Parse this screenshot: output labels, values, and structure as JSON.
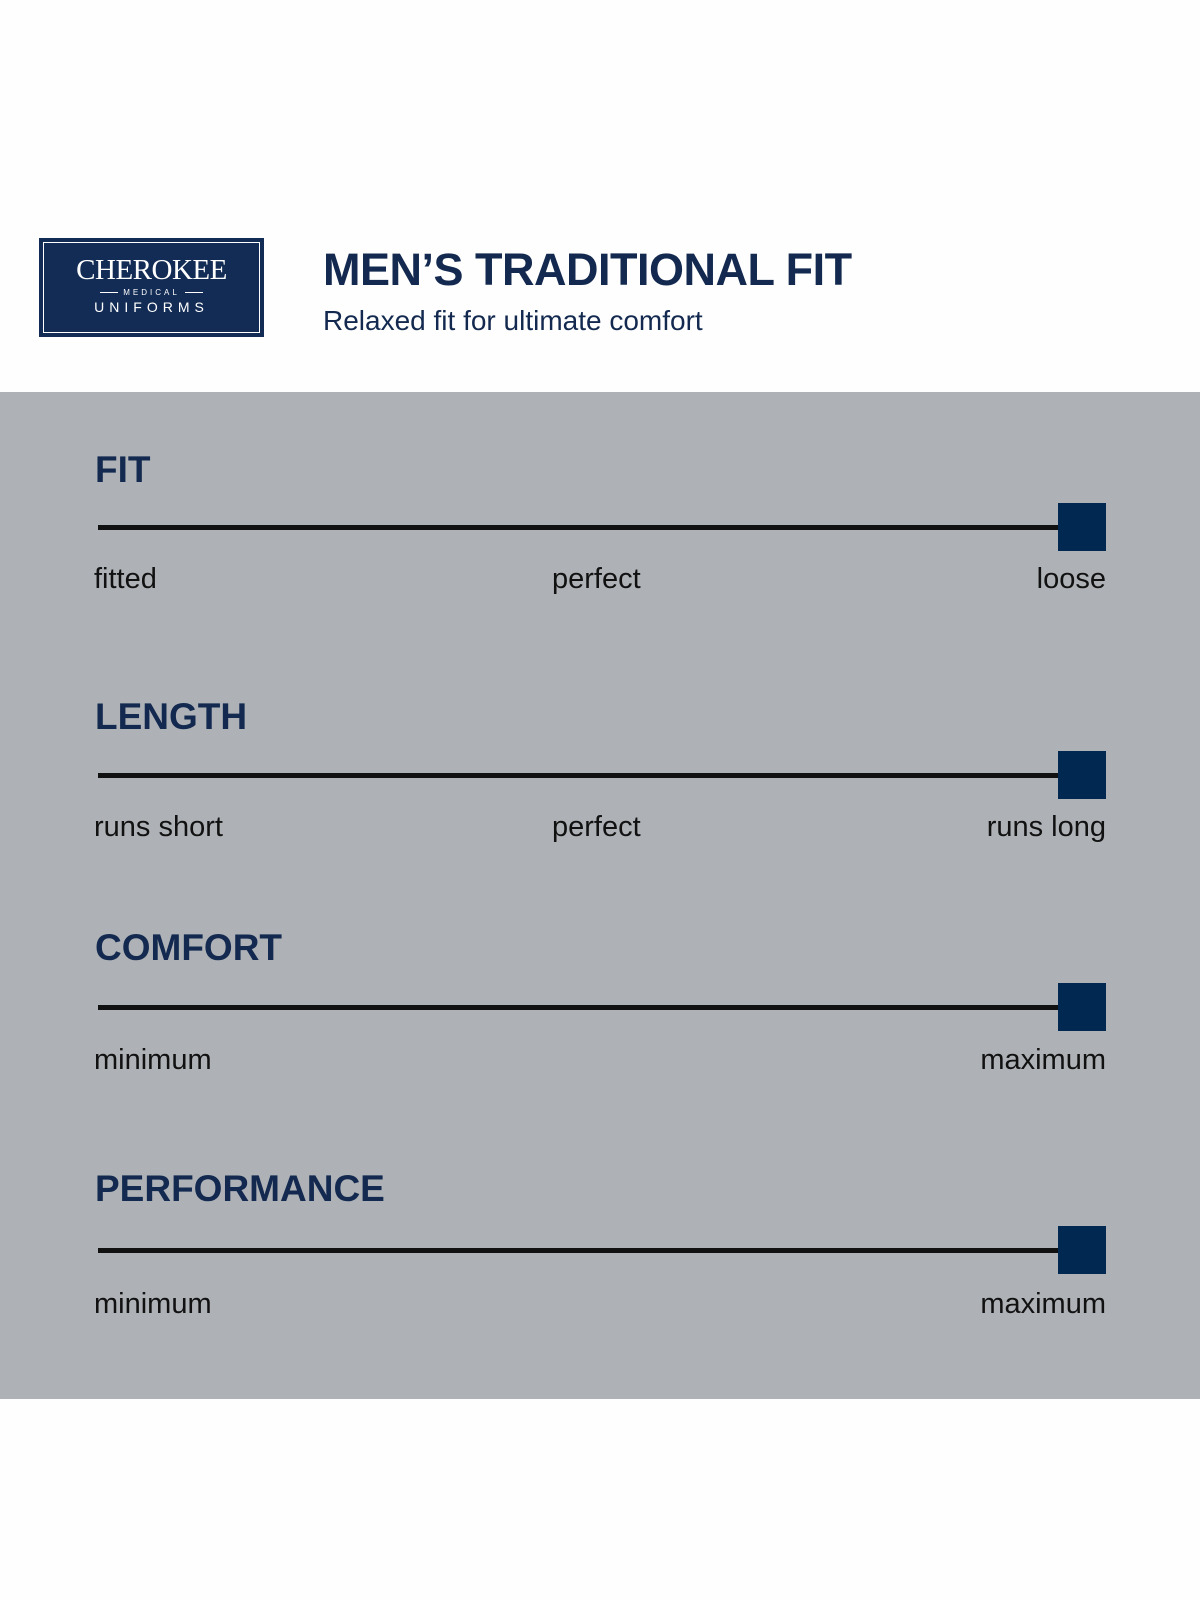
{
  "logo": {
    "brand": "CHEROKEE",
    "sub": "MEDICAL",
    "main": "UNIFORMS"
  },
  "header": {
    "title": "MEN’S TRADITIONAL FIT",
    "subtitle": "Relaxed fit for ultimate comfort"
  },
  "colors": {
    "navy": "#13294f",
    "marker": "#002851",
    "band": "#aeb2b6"
  },
  "scales": [
    {
      "title": "FIT",
      "left": "fitted",
      "middle": "perfect",
      "right": "loose",
      "value": 1.0
    },
    {
      "title": "LENGTH",
      "left": "runs short",
      "middle": "perfect",
      "right": "runs long",
      "value": 1.0
    },
    {
      "title": "COMFORT",
      "left": "minimum",
      "right": "maximum",
      "value": 1.0
    },
    {
      "title": "PERFORMANCE",
      "left": "minimum",
      "right": "maximum",
      "value": 1.0
    }
  ]
}
